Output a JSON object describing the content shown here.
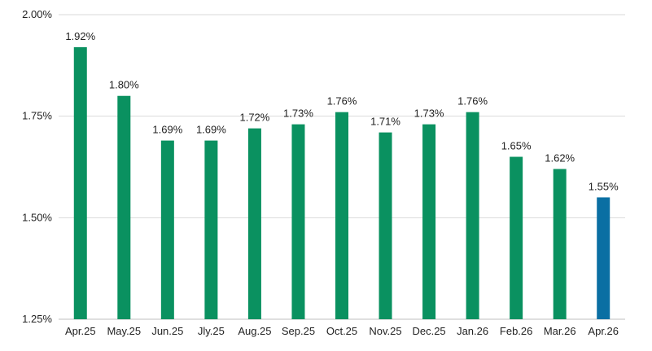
{
  "chart_data": {
    "type": "bar",
    "title": "",
    "xlabel": "",
    "ylabel": "",
    "categories": [
      "Apr.25",
      "May.25",
      "Jun.25",
      "Jly.25",
      "Aug.25",
      "Sep.25",
      "Oct.25",
      "Nov.25",
      "Dec.25",
      "Jan.26",
      "Feb.26",
      "Mar.26",
      "Apr.26"
    ],
    "values": [
      1.92,
      1.8,
      1.69,
      1.69,
      1.72,
      1.73,
      1.76,
      1.71,
      1.73,
      1.76,
      1.65,
      1.62,
      1.55
    ],
    "data_labels": [
      "1.92%",
      "1.80%",
      "1.69%",
      "1.69%",
      "1.72%",
      "1.73%",
      "1.76%",
      "1.71%",
      "1.73%",
      "1.76%",
      "1.65%",
      "1.62%",
      "1.55%"
    ],
    "ylim": [
      1.25,
      2.0
    ],
    "yticks": [
      1.25,
      1.5,
      1.75,
      2.0
    ],
    "ytick_labels": [
      "1.25%",
      "1.50%",
      "1.75%",
      "2.00%"
    ],
    "grid": true,
    "colors": {
      "bar": "#0a9160",
      "highlight_bar": "#0a6fa3",
      "grid": "#d9d9d9",
      "text": "#222222"
    },
    "highlight_index": 12
  }
}
